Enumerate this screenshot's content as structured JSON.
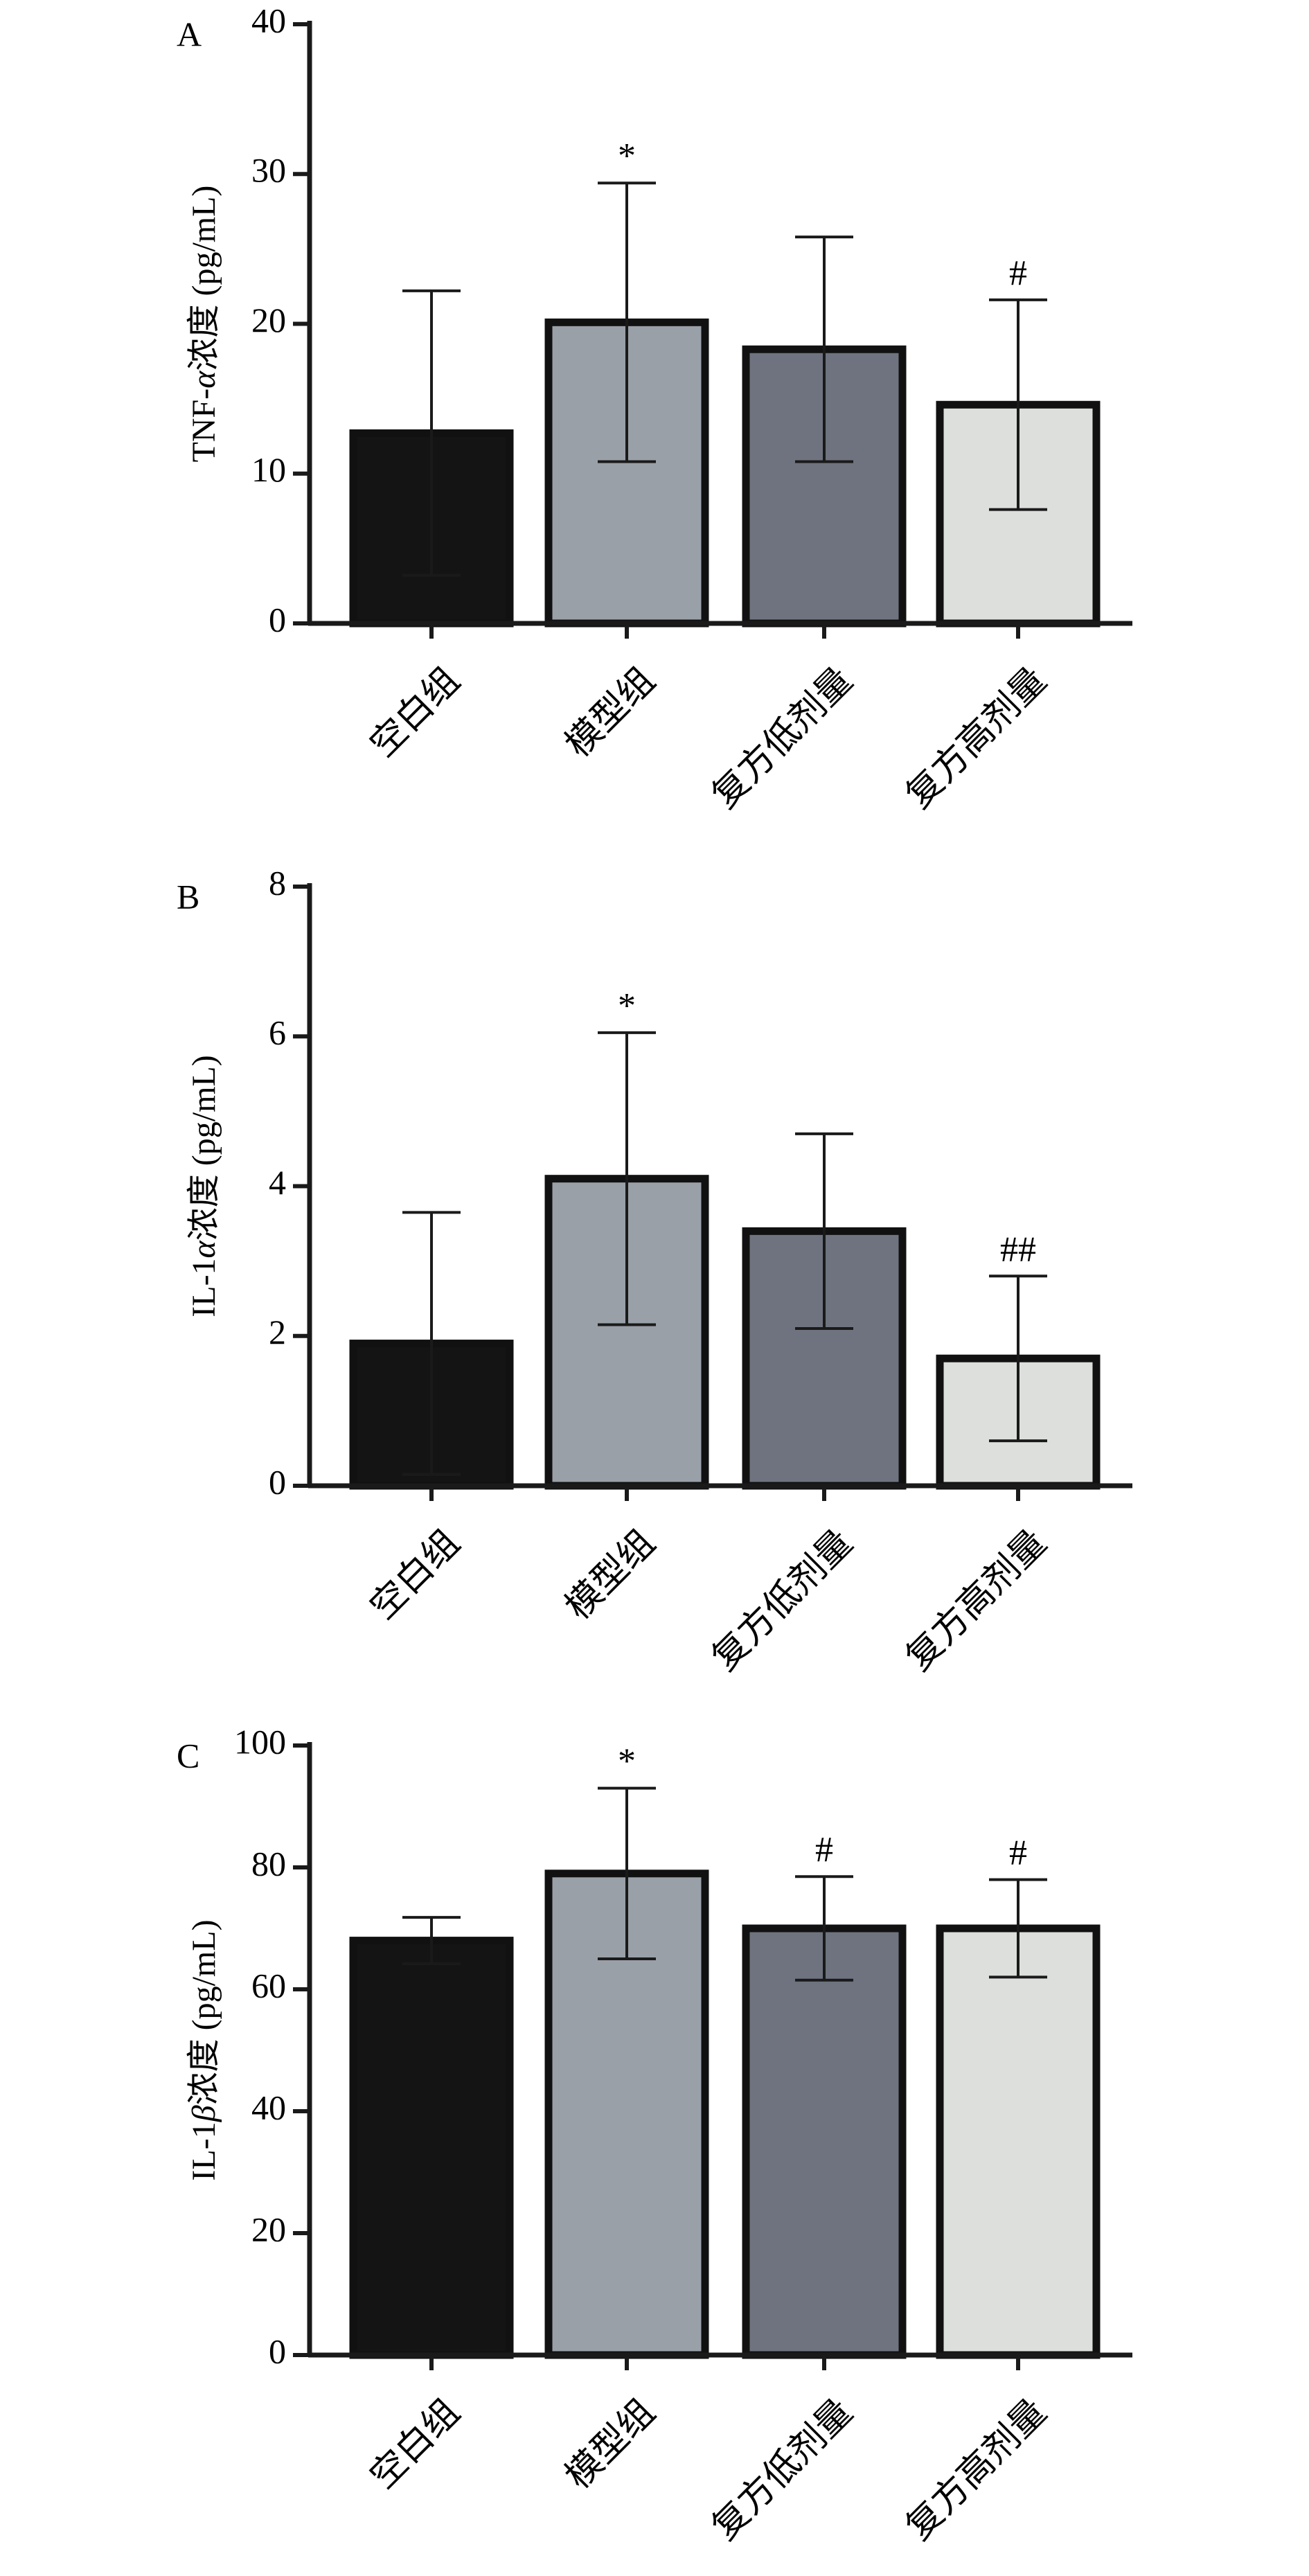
{
  "chart_data": [
    {
      "panel": "A",
      "type": "bar",
      "ylabel_prefix": "TNF-",
      "ylabel_greek": "α",
      "ylabel_suffix": "浓度 (pg/mL)",
      "ylim": [
        0,
        40
      ],
      "yticks": [
        0,
        10,
        20,
        30,
        40
      ],
      "grid": false,
      "categories": [
        "空白组",
        "模型组",
        "复方低剂量",
        "复方高剂量"
      ],
      "values": [
        12.7,
        20.1,
        18.3,
        14.6
      ],
      "error": [
        9.5,
        9.3,
        7.5,
        7.0
      ],
      "significance": [
        "",
        "*",
        "",
        "#"
      ]
    },
    {
      "panel": "B",
      "type": "bar",
      "ylabel_prefix": "IL-1",
      "ylabel_greek": "α",
      "ylabel_suffix": "浓度 (pg/mL)",
      "ylim": [
        0,
        8
      ],
      "yticks": [
        0,
        2,
        4,
        6,
        8
      ],
      "grid": false,
      "categories": [
        "空白组",
        "模型组",
        "复方低剂量",
        "复方高剂量"
      ],
      "values": [
        1.9,
        4.1,
        3.4,
        1.7
      ],
      "error": [
        1.75,
        1.95,
        1.3,
        1.1
      ],
      "significance": [
        "",
        "*",
        "",
        "##"
      ]
    },
    {
      "panel": "C",
      "type": "bar",
      "ylabel_prefix": "IL-1",
      "ylabel_greek": "β",
      "ylabel_suffix": "浓度 (pg/mL)",
      "ylim": [
        0,
        100
      ],
      "yticks": [
        0,
        20,
        40,
        60,
        80,
        100
      ],
      "grid": false,
      "categories": [
        "空白组",
        "模型组",
        "复方低剂量",
        "复方高剂量"
      ],
      "values": [
        68.0,
        79.0,
        70.0,
        70.0
      ],
      "error": [
        3.8,
        14.0,
        8.5,
        8.0
      ],
      "significance": [
        "",
        "*",
        "#",
        "#"
      ]
    }
  ],
  "colors": {
    "axis": "#1a1a1a",
    "bar_outline": "#111111",
    "bar_fills": [
      "#141414",
      "#9aa0a8",
      "#6e737f",
      "#dcdfdc"
    ]
  }
}
